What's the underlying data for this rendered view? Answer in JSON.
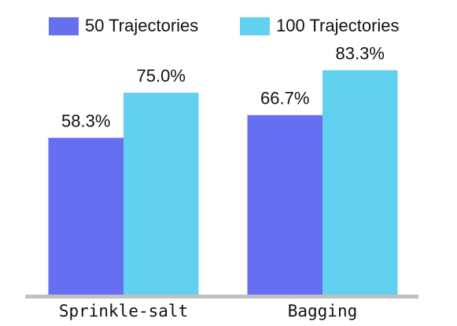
{
  "chart_data": {
    "type": "bar",
    "categories": [
      "Sprinkle-salt",
      "Bagging"
    ],
    "series": [
      {
        "name": "50 Trajectories",
        "color": "#666ef2",
        "values": [
          58.3,
          66.7
        ],
        "value_labels": [
          "58.3%",
          "66.7%"
        ]
      },
      {
        "name": "100 Trajectories",
        "color": "#62d0ef",
        "values": [
          75.0,
          83.3
        ],
        "value_labels": [
          "75.0%",
          "83.3%"
        ]
      }
    ]
  }
}
